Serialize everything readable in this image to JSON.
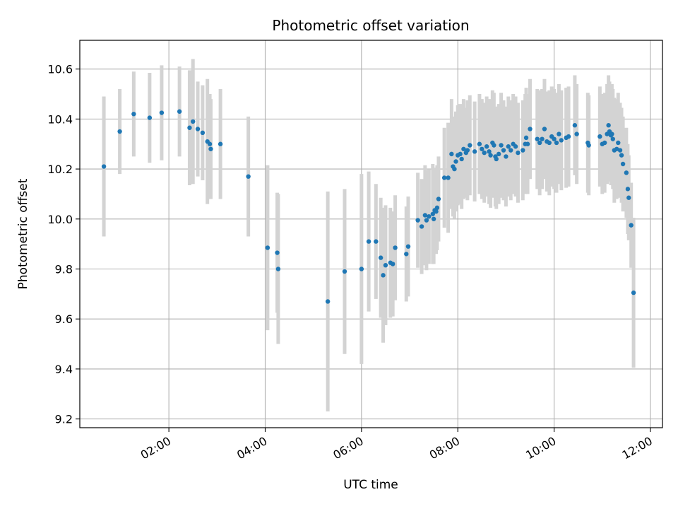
{
  "chart_data": {
    "type": "scatter",
    "title": "Photometric offset variation",
    "xlabel": "UTC time",
    "ylabel": "Photometric offset",
    "x_unit": "hours UTC",
    "xlim": [
      0.15,
      12.25
    ],
    "ylim": [
      9.165,
      10.715
    ],
    "x_ticks": [
      {
        "value": 2,
        "label": "02:00"
      },
      {
        "value": 4,
        "label": "04:00"
      },
      {
        "value": 6,
        "label": "06:00"
      },
      {
        "value": 8,
        "label": "08:00"
      },
      {
        "value": 10,
        "label": "10:00"
      },
      {
        "value": 12,
        "label": "12:00"
      }
    ],
    "y_ticks": [
      {
        "value": 9.2,
        "label": "9.2"
      },
      {
        "value": 9.4,
        "label": "9.4"
      },
      {
        "value": 9.6,
        "label": "9.6"
      },
      {
        "value": 9.8,
        "label": "9.8"
      },
      {
        "value": 10.0,
        "label": "10.0"
      },
      {
        "value": 10.2,
        "label": "10.2"
      },
      {
        "value": 10.4,
        "label": "10.4"
      },
      {
        "value": 10.6,
        "label": "10.6"
      }
    ],
    "grid": true,
    "colors": {
      "marker": "#1f77b4",
      "error_bar": "#d3d3d3",
      "grid": "#b0b0b0"
    },
    "series": [
      {
        "points": [
          [
            0.65,
            10.21,
            0.28
          ],
          [
            0.98,
            10.35,
            0.17
          ],
          [
            1.27,
            10.42,
            0.17
          ],
          [
            1.6,
            10.405,
            0.18
          ],
          [
            1.85,
            10.425,
            0.19
          ],
          [
            2.22,
            10.43,
            0.18
          ],
          [
            2.43,
            10.365,
            0.23
          ],
          [
            2.5,
            10.39,
            0.25
          ],
          [
            2.6,
            10.36,
            0.19
          ],
          [
            2.7,
            10.345,
            0.19
          ],
          [
            2.8,
            10.31,
            0.25
          ],
          [
            2.85,
            10.3,
            0.2
          ],
          [
            2.87,
            10.28,
            0.2
          ],
          [
            3.07,
            10.3,
            0.22
          ],
          [
            3.65,
            10.17,
            0.24
          ],
          [
            4.05,
            9.885,
            0.33
          ],
          [
            4.25,
            9.865,
            0.24
          ],
          [
            4.27,
            9.8,
            0.3
          ],
          [
            5.3,
            9.67,
            0.44
          ],
          [
            5.65,
            9.79,
            0.33
          ],
          [
            6.0,
            9.8,
            0.38
          ],
          [
            6.15,
            9.91,
            0.28
          ],
          [
            6.3,
            9.91,
            0.23
          ],
          [
            6.4,
            9.845,
            0.24
          ],
          [
            6.45,
            9.775,
            0.27
          ],
          [
            6.5,
            9.815,
            0.24
          ],
          [
            6.6,
            9.825,
            0.22
          ],
          [
            6.65,
            9.82,
            0.21
          ],
          [
            6.7,
            9.885,
            0.21
          ],
          [
            6.93,
            9.86,
            0.19
          ],
          [
            6.97,
            9.89,
            0.2
          ],
          [
            7.17,
            9.995,
            0.19
          ],
          [
            7.25,
            9.97,
            0.19
          ],
          [
            7.32,
            10.015,
            0.2
          ],
          [
            7.35,
            9.995,
            0.2
          ],
          [
            7.4,
            10.01,
            0.19
          ],
          [
            7.48,
            10.02,
            0.2
          ],
          [
            7.5,
            10.0,
            0.18
          ],
          [
            7.52,
            10.035,
            0.17
          ],
          [
            7.55,
            10.03,
            0.17
          ],
          [
            7.57,
            10.045,
            0.17
          ],
          [
            7.6,
            10.08,
            0.17
          ],
          [
            7.72,
            10.165,
            0.2
          ],
          [
            7.8,
            10.165,
            0.22
          ],
          [
            7.87,
            10.26,
            0.22
          ],
          [
            7.9,
            10.21,
            0.2
          ],
          [
            7.93,
            10.2,
            0.2
          ],
          [
            7.96,
            10.23,
            0.2
          ],
          [
            8.0,
            10.255,
            0.2
          ],
          [
            8.05,
            10.26,
            0.2
          ],
          [
            8.08,
            10.24,
            0.2
          ],
          [
            8.12,
            10.28,
            0.2
          ],
          [
            8.17,
            10.265,
            0.18
          ],
          [
            8.2,
            10.275,
            0.2
          ],
          [
            8.25,
            10.295,
            0.2
          ],
          [
            8.35,
            10.27,
            0.2
          ],
          [
            8.45,
            10.3,
            0.2
          ],
          [
            8.5,
            10.28,
            0.2
          ],
          [
            8.55,
            10.265,
            0.2
          ],
          [
            8.6,
            10.29,
            0.2
          ],
          [
            8.65,
            10.27,
            0.21
          ],
          [
            8.68,
            10.255,
            0.21
          ],
          [
            8.72,
            10.305,
            0.21
          ],
          [
            8.75,
            10.295,
            0.21
          ],
          [
            8.78,
            10.25,
            0.2
          ],
          [
            8.8,
            10.24,
            0.2
          ],
          [
            8.85,
            10.26,
            0.2
          ],
          [
            8.9,
            10.295,
            0.21
          ],
          [
            8.95,
            10.275,
            0.2
          ],
          [
            9.0,
            10.25,
            0.2
          ],
          [
            9.05,
            10.29,
            0.2
          ],
          [
            9.1,
            10.275,
            0.2
          ],
          [
            9.15,
            10.3,
            0.2
          ],
          [
            9.2,
            10.29,
            0.2
          ],
          [
            9.25,
            10.265,
            0.2
          ],
          [
            9.35,
            10.275,
            0.2
          ],
          [
            9.4,
            10.3,
            0.2
          ],
          [
            9.42,
            10.325,
            0.2
          ],
          [
            9.45,
            10.3,
            0.2
          ],
          [
            9.5,
            10.36,
            0.2
          ],
          [
            9.65,
            10.32,
            0.2
          ],
          [
            9.7,
            10.305,
            0.21
          ],
          [
            9.75,
            10.32,
            0.2
          ],
          [
            9.8,
            10.36,
            0.2
          ],
          [
            9.85,
            10.31,
            0.2
          ],
          [
            9.9,
            10.305,
            0.21
          ],
          [
            9.95,
            10.33,
            0.2
          ],
          [
            10.0,
            10.32,
            0.2
          ],
          [
            10.05,
            10.305,
            0.2
          ],
          [
            10.1,
            10.34,
            0.2
          ],
          [
            10.15,
            10.315,
            0.2
          ],
          [
            10.25,
            10.325,
            0.2
          ],
          [
            10.3,
            10.33,
            0.2
          ],
          [
            10.43,
            10.375,
            0.2
          ],
          [
            10.47,
            10.34,
            0.2
          ],
          [
            10.7,
            10.305,
            0.2
          ],
          [
            10.72,
            10.295,
            0.2
          ],
          [
            10.95,
            10.33,
            0.2
          ],
          [
            11.0,
            10.3,
            0.2
          ],
          [
            11.05,
            10.305,
            0.2
          ],
          [
            11.1,
            10.34,
            0.2
          ],
          [
            11.13,
            10.375,
            0.2
          ],
          [
            11.15,
            10.35,
            0.2
          ],
          [
            11.18,
            10.335,
            0.2
          ],
          [
            11.2,
            10.34,
            0.2
          ],
          [
            11.22,
            10.32,
            0.2
          ],
          [
            11.25,
            10.275,
            0.21
          ],
          [
            11.3,
            10.28,
            0.2
          ],
          [
            11.33,
            10.305,
            0.2
          ],
          [
            11.37,
            10.275,
            0.19
          ],
          [
            11.4,
            10.255,
            0.19
          ],
          [
            11.43,
            10.22,
            0.19
          ],
          [
            11.5,
            10.185,
            0.18
          ],
          [
            11.53,
            10.12,
            0.18
          ],
          [
            11.55,
            10.085,
            0.17
          ],
          [
            11.6,
            9.975,
            0.17
          ],
          [
            11.65,
            9.705,
            0.3
          ]
        ]
      }
    ]
  }
}
